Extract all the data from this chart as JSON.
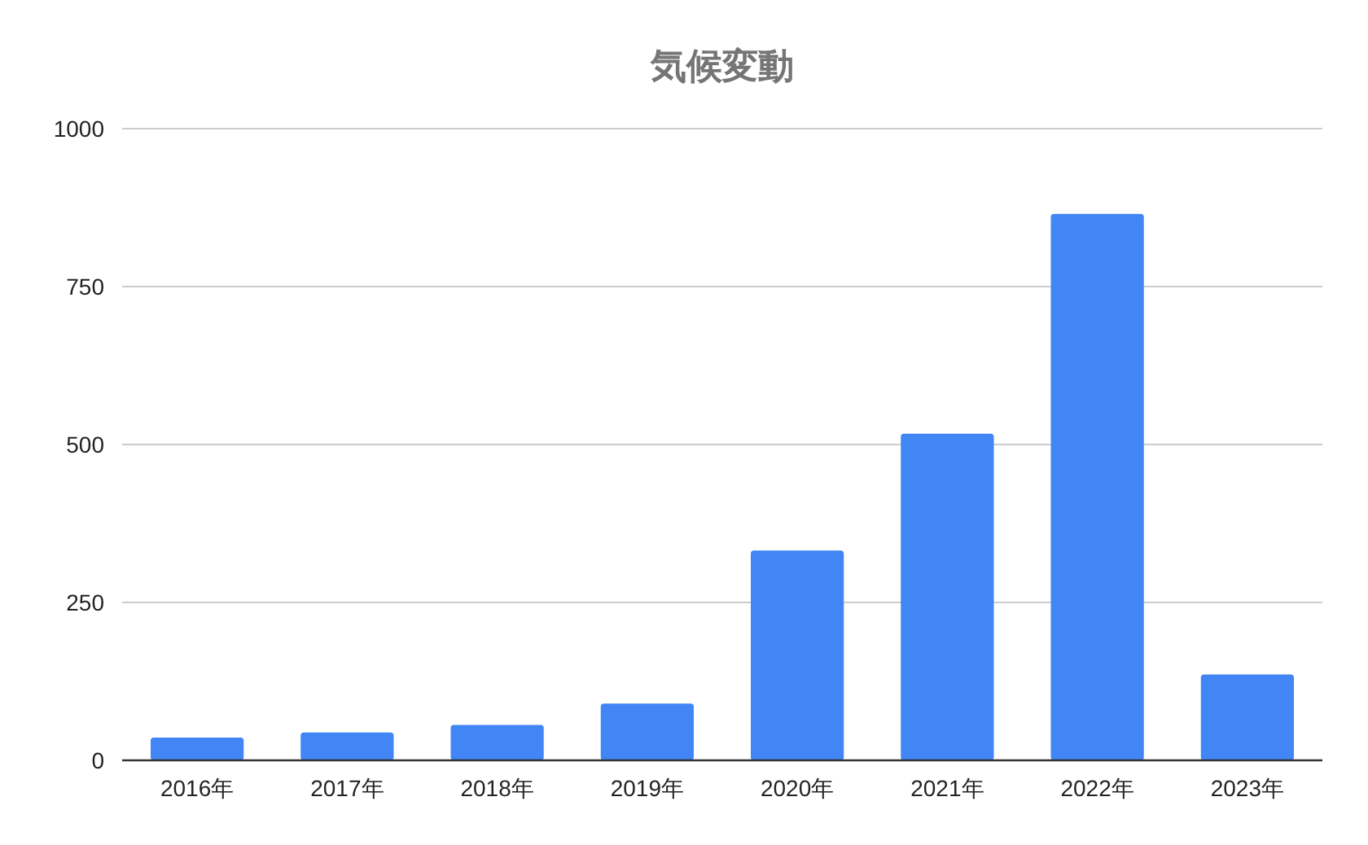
{
  "chart_data": {
    "type": "bar",
    "title": "気候変動",
    "categories": [
      "2016年",
      "2017年",
      "2018年",
      "2019年",
      "2020年",
      "2021年",
      "2022年",
      "2023年"
    ],
    "values": [
      36,
      44,
      56,
      90,
      332,
      517,
      865,
      136
    ],
    "color": "#4285f4",
    "ylim": [
      0,
      1000
    ],
    "yticks": [
      0,
      250,
      500,
      750,
      1000
    ],
    "grid": "y"
  }
}
